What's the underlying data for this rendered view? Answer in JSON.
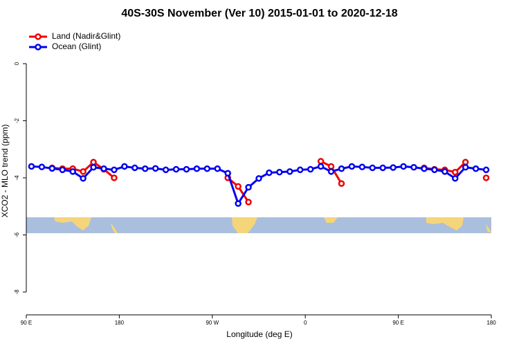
{
  "chart_data": {
    "type": "line",
    "title": "40S-30S November (Ver 10)   2015-01-01 to 2020-12-18",
    "xlabel": "Longitude (deg E)",
    "ylabel": "XCO2 - MLO trend (ppm)",
    "x": [
      95,
      105,
      115,
      125,
      135,
      145,
      155,
      165,
      175,
      185,
      195,
      205,
      215,
      225,
      235,
      245,
      255,
      265,
      275,
      285,
      295,
      305,
      315,
      325,
      335,
      345,
      355,
      365,
      375,
      385,
      395,
      405,
      415,
      425,
      435,
      445,
      455,
      465,
      475,
      485,
      495,
      505,
      515,
      525,
      535
    ],
    "series": [
      {
        "name": "Land (Nadir&Glint)",
        "color": "#ee0000",
        "values": [
          null,
          null,
          -3.65,
          -3.68,
          -3.68,
          -3.78,
          -3.45,
          -3.7,
          -4.0,
          null,
          null,
          null,
          null,
          null,
          null,
          null,
          null,
          null,
          null,
          -4.0,
          -4.3,
          -4.85,
          null,
          null,
          null,
          null,
          null,
          null,
          -3.42,
          -3.6,
          -4.2,
          null,
          null,
          null,
          null,
          null,
          null,
          null,
          -3.65,
          -3.7,
          -3.72,
          -3.8,
          -3.45,
          null,
          -4.0
        ]
      },
      {
        "name": "Ocean (Glint)",
        "color": "#0000ee",
        "values": [
          -3.6,
          -3.62,
          -3.67,
          -3.72,
          -3.78,
          -4.02,
          -3.63,
          -3.68,
          -3.72,
          -3.6,
          -3.65,
          -3.68,
          -3.67,
          -3.72,
          -3.7,
          -3.7,
          -3.68,
          -3.68,
          -3.68,
          -3.84,
          -4.9,
          -4.33,
          -4.02,
          -3.82,
          -3.8,
          -3.78,
          -3.72,
          -3.7,
          -3.6,
          -3.78,
          -3.68,
          -3.6,
          -3.62,
          -3.65,
          -3.65,
          -3.64,
          -3.6,
          -3.63,
          -3.68,
          -3.72,
          -3.78,
          -4.02,
          -3.63,
          -3.68,
          -3.72
        ]
      }
    ],
    "xlim": [
      90,
      540
    ],
    "xticks": [
      {
        "value": 90,
        "label": "90 E"
      },
      180,
      {
        "value": 270,
        "label": "90 W"
      },
      {
        "value": 360,
        "label": "0"
      },
      {
        "value": 450,
        "label": "90 E"
      },
      {
        "value": 540,
        "label": "180"
      }
    ],
    "ylim": [
      -8.8,
      1.26
    ],
    "yticks": [
      0,
      -2,
      -4,
      -6,
      -8
    ],
    "legend": "top-left"
  }
}
